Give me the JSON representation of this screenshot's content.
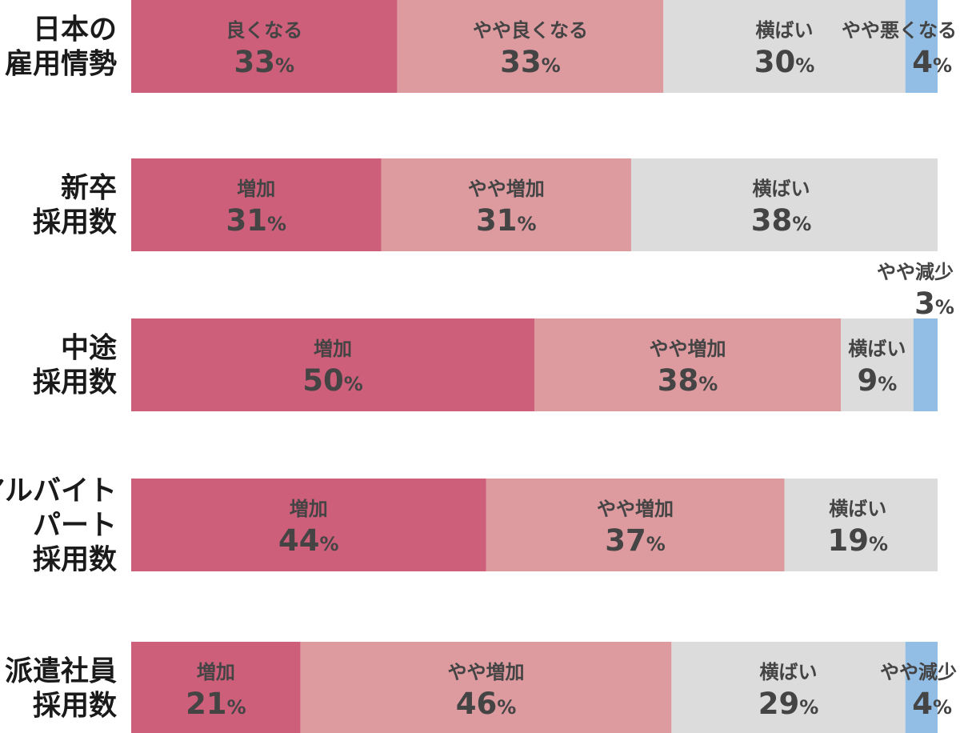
{
  "colors": {
    "strong_positive": "#cd5f7a",
    "mild_positive": "#dd9ba0",
    "neutral": "#dcdcdc",
    "mild_negative": "#92bde5",
    "text": "#444444",
    "row_label_text": "#1a1a1a"
  },
  "chart_data": {
    "type": "bar",
    "orientation": "horizontal",
    "stacked": true,
    "normalized": true,
    "unit": "%",
    "rows": [
      {
        "label_lines": [
          "日本の",
          "雇用情勢"
        ],
        "segments": [
          {
            "label": "良くなる",
            "value": 33,
            "color_key": "strong_positive"
          },
          {
            "label": "やや良くなる",
            "value": 33,
            "color_key": "mild_positive"
          },
          {
            "label": "横ばい",
            "value": 30,
            "color_key": "neutral"
          },
          {
            "label": "やや悪くなる",
            "value": 4,
            "color_key": "mild_negative"
          }
        ]
      },
      {
        "label_lines": [
          "新卒",
          "採用数"
        ],
        "segments": [
          {
            "label": "増加",
            "value": 31,
            "color_key": "strong_positive"
          },
          {
            "label": "やや増加",
            "value": 31,
            "color_key": "mild_positive"
          },
          {
            "label": "横ばい",
            "value": 38,
            "color_key": "neutral"
          }
        ]
      },
      {
        "label_lines": [
          "中途",
          "採用数"
        ],
        "segments": [
          {
            "label": "増加",
            "value": 50,
            "color_key": "strong_positive"
          },
          {
            "label": "やや増加",
            "value": 38,
            "color_key": "mild_positive"
          },
          {
            "label": "横ばい",
            "value": 9,
            "color_key": "neutral"
          },
          {
            "label": "やや減少",
            "value": 3,
            "color_key": "mild_negative"
          }
        ]
      },
      {
        "label_lines": [
          "アルバイト",
          "パート",
          "採用数"
        ],
        "segments": [
          {
            "label": "増加",
            "value": 44,
            "color_key": "strong_positive"
          },
          {
            "label": "やや増加",
            "value": 37,
            "color_key": "mild_positive"
          },
          {
            "label": "横ばい",
            "value": 19,
            "color_key": "neutral"
          }
        ]
      },
      {
        "label_lines": [
          "派遣社員",
          "採用数"
        ],
        "segments": [
          {
            "label": "増加",
            "value": 21,
            "color_key": "strong_positive"
          },
          {
            "label": "やや増加",
            "value": 46,
            "color_key": "mild_positive"
          },
          {
            "label": "横ばい",
            "value": 29,
            "color_key": "neutral"
          },
          {
            "label": "やや減少",
            "value": 4,
            "color_key": "mild_negative"
          }
        ]
      }
    ]
  }
}
